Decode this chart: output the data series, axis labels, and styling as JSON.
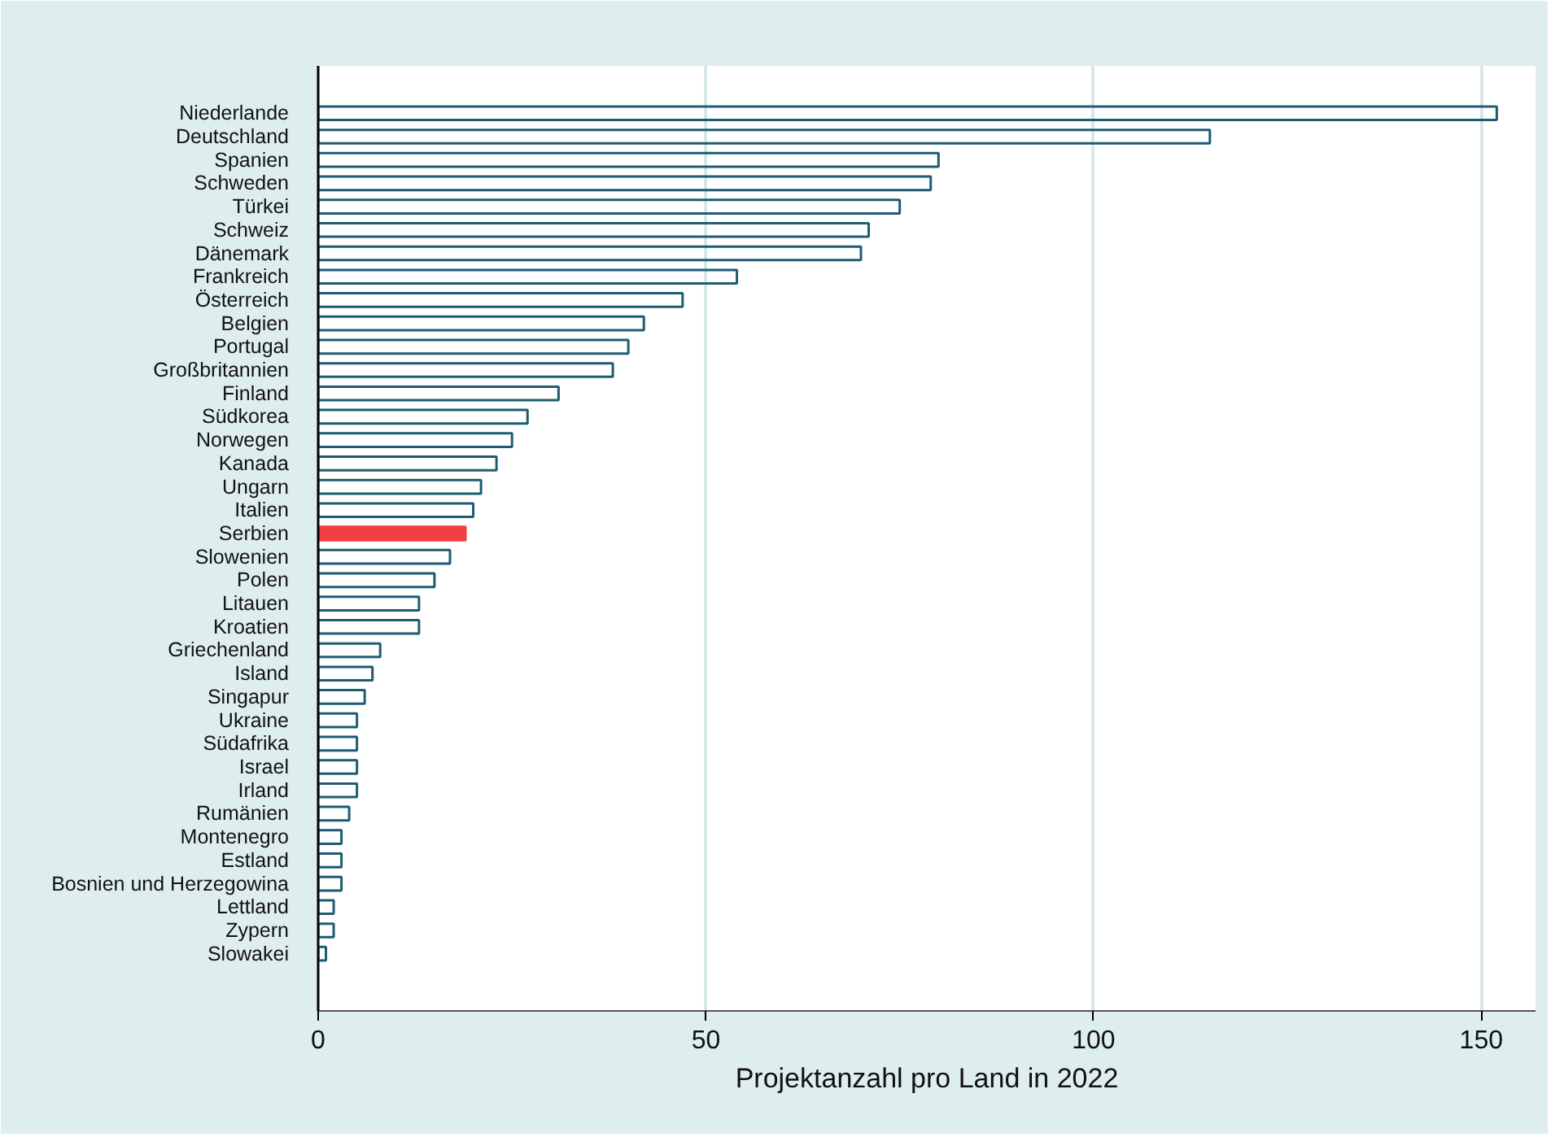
{
  "chart_data": {
    "type": "bar",
    "orientation": "horizontal",
    "xlabel": "Projektanzahl pro Land in 2022",
    "categories": [
      "Niederlande",
      "Deutschland",
      "Spanien",
      "Schweden",
      "Türkei",
      "Schweiz",
      "Dänemark",
      "Frankreich",
      "Österreich",
      "Belgien",
      "Portugal",
      "Großbritannien",
      "Finland",
      "Südkorea",
      "Norwegen",
      "Kanada",
      "Ungarn",
      "Italien",
      "Serbien",
      "Slowenien",
      "Polen",
      "Litauen",
      "Kroatien",
      "Griechenland",
      "Island",
      "Singapur",
      "Ukraine",
      "Südafrika",
      "Israel",
      "Irland",
      "Rumänien",
      "Montenegro",
      "Estland",
      "Bosnien und Herzegowina",
      "Lettland",
      "Zypern",
      "Slowakei"
    ],
    "values": [
      152,
      115,
      80,
      79,
      75,
      71,
      70,
      54,
      47,
      42,
      40,
      38,
      31,
      27,
      25,
      23,
      21,
      20,
      19,
      17,
      15,
      13,
      13,
      8,
      7,
      6,
      5,
      5,
      5,
      5,
      4,
      3,
      3,
      3,
      2,
      2,
      1
    ],
    "color": "#1f5c73",
    "colors": [
      "#1f5c73",
      "#1f5c73",
      "#1f5c73",
      "#1f5c73",
      "#1f5c73",
      "#1f5c73",
      "#1f5c73",
      "#1f5c73",
      "#1f5c73",
      "#1f5c73",
      "#1f5c73",
      "#1f5c73",
      "#1f5c73",
      "#1f5c73",
      "#1f5c73",
      "#1f5c73",
      "#1f5c73",
      "#1f5c73",
      "#f04040",
      "#1f5c73",
      "#1f5c73",
      "#1f5c73",
      "#1f5c73",
      "#1f5c73",
      "#1f5c73",
      "#1f5c73",
      "#1f5c73",
      "#1f5c73",
      "#1f5c73",
      "#1f5c73",
      "#1f5c73",
      "#1f5c73",
      "#1f5c73",
      "#1f5c73",
      "#1f5c73",
      "#1f5c73",
      "#1f5c73"
    ],
    "xlim": [
      0,
      157
    ],
    "xticks": [
      0,
      50,
      100,
      150
    ],
    "grid": "x"
  }
}
